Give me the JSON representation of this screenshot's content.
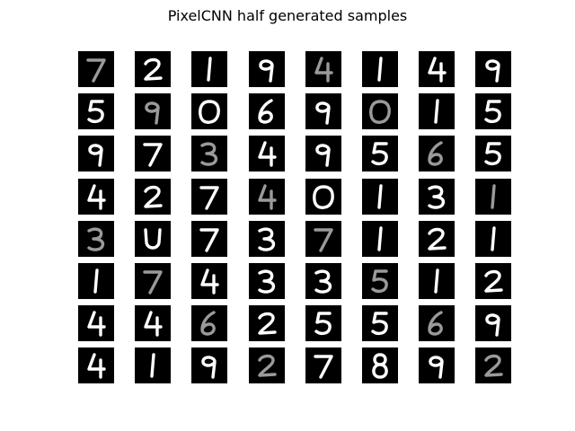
{
  "figure": {
    "title": "PixelCNN half generated samples"
  },
  "grid": {
    "rows": 8,
    "cols": 8,
    "background_color": "#000000",
    "stroke_colors": [
      "#ffffff",
      "#9a9a9a"
    ],
    "samples": [
      [
        "7",
        "2",
        "1",
        "9",
        "4",
        "1",
        "4",
        "9"
      ],
      [
        "5",
        "9",
        "0",
        "6",
        "9",
        "0",
        "1",
        "5"
      ],
      [
        "9",
        "7",
        "3",
        "4",
        "9",
        "5",
        "6",
        "5"
      ],
      [
        "4",
        "2",
        "7",
        "4",
        "0",
        "1",
        "3",
        "1"
      ],
      [
        "3",
        "U",
        "7",
        "3",
        "7",
        "1",
        "2",
        "1"
      ],
      [
        "1",
        "7",
        "4",
        "3",
        "3",
        "5",
        "1",
        "2"
      ],
      [
        "4",
        "4",
        "6",
        "2",
        "5",
        "5",
        "6",
        "9"
      ],
      [
        "4",
        "1",
        "9",
        "2",
        "7",
        "8",
        "9",
        "2"
      ]
    ]
  }
}
